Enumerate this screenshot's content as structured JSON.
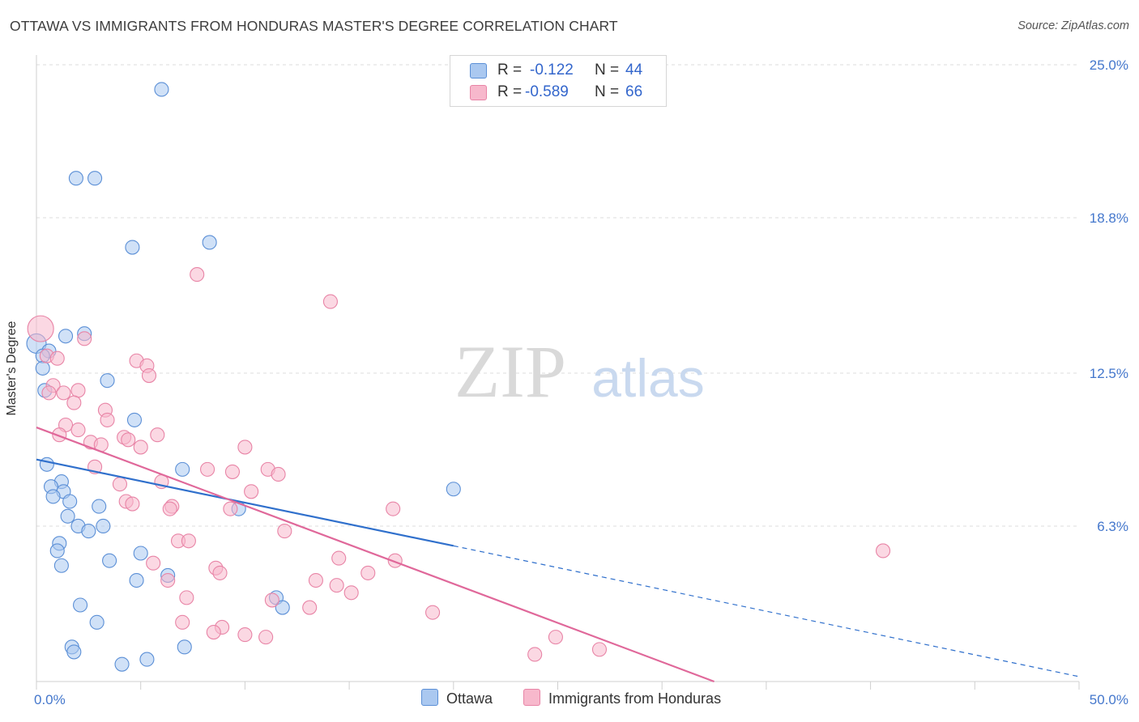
{
  "title": "OTTAWA VS IMMIGRANTS FROM HONDURAS MASTER'S DEGREE CORRELATION CHART",
  "source": "Source: ZipAtlas.com",
  "watermark": {
    "part1": "ZIP",
    "part2": "atlas"
  },
  "legend": {
    "rows": [
      {
        "r_label": "R =",
        "r_value": "-0.122",
        "n_label": "N =",
        "n_value": "44"
      },
      {
        "r_label": "R =",
        "r_value": "-0.589",
        "n_label": "N =",
        "n_value": "66"
      }
    ]
  },
  "colors": {
    "ottawa_fill": "#aac8f0",
    "ottawa_stroke": "#5b8fd6",
    "ottawa_line": "#3070cc",
    "honduras_fill": "#f7b8cc",
    "honduras_stroke": "#e884a6",
    "honduras_line": "#e0689a",
    "tick_text": "#4477cc",
    "grid": "#dcdcdc"
  },
  "chart_data": {
    "type": "scatter",
    "xlabel": "",
    "ylabel": "Master's Degree",
    "xlim": [
      0,
      50
    ],
    "ylim": [
      0,
      25
    ],
    "x_ticks_labels": [
      "0.0%",
      "50.0%"
    ],
    "y_ticks": [
      6.3,
      12.5,
      18.8,
      25.0
    ],
    "y_ticks_labels": [
      "6.3%",
      "12.5%",
      "18.8%",
      "25.0%"
    ],
    "grid": true,
    "legend_position": "top-center",
    "series": [
      {
        "name": "Ottawa",
        "trend": {
          "x": [
            0,
            20
          ],
          "y": [
            9.0,
            5.5
          ],
          "dashed_to": [
            50,
            0.2
          ]
        },
        "points": [
          [
            6.0,
            24.0
          ],
          [
            1.9,
            20.4
          ],
          [
            2.8,
            20.4
          ],
          [
            4.6,
            17.6
          ],
          [
            8.3,
            17.8
          ],
          [
            0.0,
            13.7
          ],
          [
            1.4,
            14.0
          ],
          [
            2.3,
            14.1
          ],
          [
            0.6,
            13.4
          ],
          [
            0.3,
            13.2
          ],
          [
            0.3,
            12.7
          ],
          [
            3.4,
            12.2
          ],
          [
            0.4,
            11.8
          ],
          [
            4.7,
            10.6
          ],
          [
            0.5,
            8.8
          ],
          [
            7.0,
            8.6
          ],
          [
            1.2,
            8.1
          ],
          [
            0.7,
            7.9
          ],
          [
            1.3,
            7.7
          ],
          [
            0.8,
            7.5
          ],
          [
            1.6,
            7.3
          ],
          [
            3.0,
            7.1
          ],
          [
            9.7,
            7.0
          ],
          [
            20.0,
            7.8
          ],
          [
            1.5,
            6.7
          ],
          [
            2.0,
            6.3
          ],
          [
            3.2,
            6.3
          ],
          [
            2.5,
            6.1
          ],
          [
            1.1,
            5.6
          ],
          [
            1.0,
            5.3
          ],
          [
            5.0,
            5.2
          ],
          [
            3.5,
            4.9
          ],
          [
            1.2,
            4.7
          ],
          [
            6.3,
            4.3
          ],
          [
            4.8,
            4.1
          ],
          [
            11.5,
            3.4
          ],
          [
            11.8,
            3.0
          ],
          [
            2.1,
            3.1
          ],
          [
            2.9,
            2.4
          ],
          [
            1.7,
            1.4
          ],
          [
            1.8,
            1.2
          ],
          [
            7.1,
            1.4
          ],
          [
            5.3,
            0.9
          ],
          [
            4.1,
            0.7
          ]
        ]
      },
      {
        "name": "Immigrants from Honduras",
        "trend": {
          "x": [
            0,
            32.5
          ],
          "y": [
            10.3,
            0.0
          ]
        },
        "points": [
          [
            0.2,
            14.3
          ],
          [
            7.7,
            16.5
          ],
          [
            14.1,
            15.4
          ],
          [
            0.5,
            13.2
          ],
          [
            1.0,
            13.1
          ],
          [
            2.3,
            13.9
          ],
          [
            4.8,
            13.0
          ],
          [
            5.3,
            12.8
          ],
          [
            5.4,
            12.4
          ],
          [
            0.8,
            12.0
          ],
          [
            1.3,
            11.7
          ],
          [
            2.0,
            11.8
          ],
          [
            0.6,
            11.7
          ],
          [
            1.8,
            11.3
          ],
          [
            3.3,
            11.0
          ],
          [
            3.4,
            10.6
          ],
          [
            1.4,
            10.4
          ],
          [
            2.0,
            10.2
          ],
          [
            1.1,
            10.0
          ],
          [
            5.8,
            10.0
          ],
          [
            4.2,
            9.9
          ],
          [
            4.4,
            9.8
          ],
          [
            2.6,
            9.7
          ],
          [
            3.1,
            9.6
          ],
          [
            5.0,
            9.5
          ],
          [
            10.0,
            9.5
          ],
          [
            2.8,
            8.7
          ],
          [
            8.2,
            8.6
          ],
          [
            9.4,
            8.5
          ],
          [
            11.1,
            8.6
          ],
          [
            11.6,
            8.4
          ],
          [
            4.0,
            8.0
          ],
          [
            6.0,
            8.1
          ],
          [
            10.3,
            7.7
          ],
          [
            4.3,
            7.3
          ],
          [
            4.6,
            7.2
          ],
          [
            6.5,
            7.1
          ],
          [
            6.4,
            7.0
          ],
          [
            9.3,
            7.0
          ],
          [
            17.1,
            7.0
          ],
          [
            11.9,
            6.1
          ],
          [
            6.8,
            5.7
          ],
          [
            7.3,
            5.7
          ],
          [
            14.5,
            5.0
          ],
          [
            17.2,
            4.9
          ],
          [
            5.6,
            4.8
          ],
          [
            8.6,
            4.6
          ],
          [
            8.8,
            4.4
          ],
          [
            15.9,
            4.4
          ],
          [
            6.3,
            4.1
          ],
          [
            13.4,
            4.1
          ],
          [
            14.4,
            3.9
          ],
          [
            15.1,
            3.6
          ],
          [
            7.2,
            3.4
          ],
          [
            11.3,
            3.3
          ],
          [
            13.1,
            3.0
          ],
          [
            19.0,
            2.8
          ],
          [
            7.0,
            2.4
          ],
          [
            8.9,
            2.2
          ],
          [
            8.5,
            2.0
          ],
          [
            10.0,
            1.9
          ],
          [
            11.0,
            1.8
          ],
          [
            24.9,
            1.8
          ],
          [
            27.0,
            1.3
          ],
          [
            23.9,
            1.1
          ],
          [
            40.6,
            5.3
          ]
        ]
      }
    ]
  }
}
